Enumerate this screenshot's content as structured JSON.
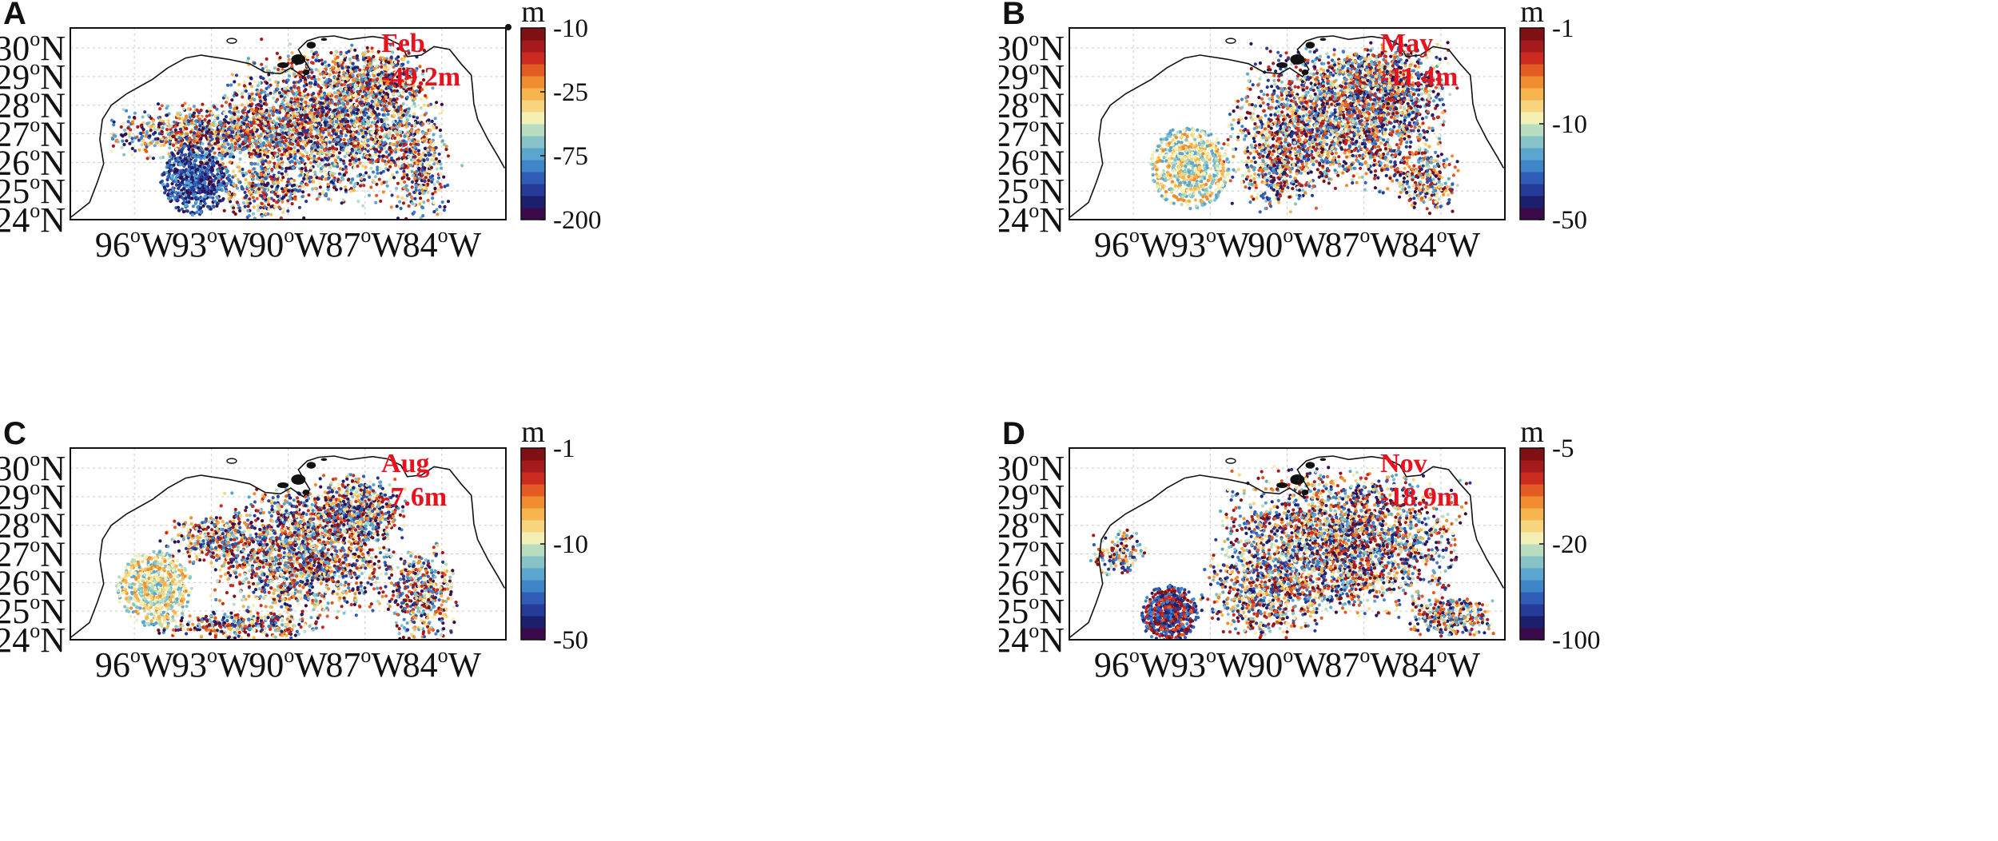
{
  "chart_data": [
    {
      "type": "scatter",
      "panel": "A",
      "month": "Feb",
      "mean_label": "-49.2m",
      "lat_ticks": [
        "30",
        "29",
        "28",
        "27",
        "26",
        "25",
        "24"
      ],
      "lon_ticks": [
        "96",
        "93",
        "90",
        "87",
        "84"
      ],
      "lat_suffix": "N",
      "lon_suffix": "W",
      "deg": "o",
      "colorbar": {
        "unit": "m",
        "ticks": [
          "-10",
          "-25",
          "-75",
          "-200"
        ]
      },
      "extent": {
        "lon": [
          -98.5,
          -81.5
        ],
        "lat": [
          24,
          30.7
        ]
      },
      "clusters": [
        {
          "lon": -88.5,
          "lat": 27.3,
          "rlon": 3.6,
          "rlat": 2.2,
          "n": 2400,
          "rot": -0.2
        },
        {
          "lon": -93.0,
          "lat": 27.0,
          "rlon": 3.4,
          "rlat": 0.9,
          "n": 900,
          "rot": 0.0
        },
        {
          "lon": -86.5,
          "lat": 28.8,
          "rlon": 1.6,
          "rlat": 1.1,
          "n": 500,
          "rot": 0.0
        },
        {
          "lon": -84.8,
          "lat": 25.8,
          "rlon": 0.9,
          "rlat": 1.6,
          "n": 300,
          "rot": 0.0
        },
        {
          "lon": -91.0,
          "lat": 25.0,
          "rlon": 1.5,
          "rlat": 0.8,
          "n": 300,
          "rot": 0.0
        }
      ],
      "eddy": {
        "lon": -93.6,
        "lat": 25.4,
        "r": 1.15,
        "n": 700,
        "bias": "deep"
      }
    },
    {
      "type": "scatter",
      "panel": "B",
      "month": "May",
      "mean_label": "-11.4m",
      "lat_ticks": [
        "30",
        "29",
        "28",
        "27",
        "26",
        "25",
        "24"
      ],
      "lon_ticks": [
        "96",
        "93",
        "90",
        "87",
        "84"
      ],
      "lat_suffix": "N",
      "lon_suffix": "W",
      "deg": "o",
      "colorbar": {
        "unit": "m",
        "ticks": [
          "-1",
          "-10",
          "-50"
        ]
      },
      "extent": {
        "lon": [
          -98.5,
          -81.5
        ],
        "lat": [
          24,
          30.7
        ]
      },
      "clusters": [
        {
          "lon": -88.0,
          "lat": 27.5,
          "rlon": 3.5,
          "rlat": 2.0,
          "n": 2200,
          "rot": -0.15
        },
        {
          "lon": -86.0,
          "lat": 28.8,
          "rlon": 2.0,
          "rlat": 1.2,
          "n": 600,
          "rot": 0.0
        },
        {
          "lon": -90.3,
          "lat": 25.8,
          "rlon": 1.6,
          "rlat": 1.3,
          "n": 400,
          "rot": 0.0
        },
        {
          "lon": -84.5,
          "lat": 25.3,
          "rlon": 1.0,
          "rlat": 0.9,
          "n": 250,
          "rot": 0.0
        }
      ],
      "eddy": {
        "lon": -93.8,
        "lat": 25.8,
        "r": 1.35,
        "n": 900,
        "bias": "shallow"
      }
    },
    {
      "type": "scatter",
      "panel": "C",
      "month": "Aug",
      "mean_label": "-7.6m",
      "lat_ticks": [
        "30",
        "29",
        "28",
        "27",
        "26",
        "25",
        "24"
      ],
      "lon_ticks": [
        "96",
        "93",
        "90",
        "87",
        "84"
      ],
      "lat_suffix": "N",
      "lon_suffix": "W",
      "deg": "o",
      "colorbar": {
        "unit": "m",
        "ticks": [
          "-1",
          "-10",
          "-50"
        ]
      },
      "extent": {
        "lon": [
          -98.5,
          -81.5
        ],
        "lat": [
          24,
          30.7
        ]
      },
      "clusters": [
        {
          "lon": -89.5,
          "lat": 27.0,
          "rlon": 3.0,
          "rlat": 1.9,
          "n": 1800,
          "rot": 0.0
        },
        {
          "lon": -87.2,
          "lat": 28.6,
          "rlon": 1.5,
          "rlat": 1.0,
          "n": 600,
          "rot": 0.0
        },
        {
          "lon": -84.8,
          "lat": 25.6,
          "rlon": 1.2,
          "rlat": 1.5,
          "n": 450,
          "rot": 0.0
        },
        {
          "lon": -92.0,
          "lat": 24.5,
          "rlon": 3.0,
          "rlat": 0.4,
          "n": 350,
          "rot": 0.0
        },
        {
          "lon": -93.0,
          "lat": 27.5,
          "rlon": 1.6,
          "rlat": 0.7,
          "n": 300,
          "rot": 0.0
        }
      ],
      "eddy": {
        "lon": -95.2,
        "lat": 25.8,
        "r": 1.25,
        "n": 800,
        "bias": "shallow"
      }
    },
    {
      "type": "scatter",
      "panel": "D",
      "month": "Nov",
      "mean_label": "-18.9m",
      "lat_ticks": [
        "30",
        "29",
        "28",
        "27",
        "26",
        "25",
        "24"
      ],
      "lon_ticks": [
        "96",
        "93",
        "90",
        "87",
        "84"
      ],
      "lat_suffix": "N",
      "lon_suffix": "W",
      "deg": "o",
      "colorbar": {
        "unit": "m",
        "ticks": [
          "-5",
          "-20",
          "-100"
        ]
      },
      "extent": {
        "lon": [
          -98.5,
          -81.5
        ],
        "lat": [
          24,
          30.7
        ]
      },
      "clusters": [
        {
          "lon": -88.0,
          "lat": 27.4,
          "rlon": 4.0,
          "rlat": 2.1,
          "n": 2600,
          "rot": -0.1
        },
        {
          "lon": -91.0,
          "lat": 25.5,
          "rlon": 2.0,
          "rlat": 1.2,
          "n": 500,
          "rot": 0.0
        },
        {
          "lon": -83.6,
          "lat": 24.8,
          "rlon": 1.4,
          "rlat": 0.6,
          "n": 300,
          "rot": 0.0
        },
        {
          "lon": -96.6,
          "lat": 27.0,
          "rlon": 0.9,
          "rlat": 0.7,
          "n": 150,
          "rot": 0.0
        }
      ],
      "eddy": {
        "lon": -94.6,
        "lat": 24.9,
        "r": 0.95,
        "n": 700,
        "bias": "mixed"
      }
    }
  ],
  "colors": {
    "palette": [
      "#3a0a4a",
      "#1c1e6e",
      "#263a9a",
      "#2f5cb6",
      "#3f86c8",
      "#5aa6cf",
      "#86c3c9",
      "#b8ddc0",
      "#f4efb4",
      "#f8d680",
      "#f6b44f",
      "#ef8c2f",
      "#e35a23",
      "#cc2a1e",
      "#a51a1d",
      "#7f1013"
    ],
    "label": "#e8121e",
    "coast": "#111111",
    "grid": "#c9c9c9"
  }
}
